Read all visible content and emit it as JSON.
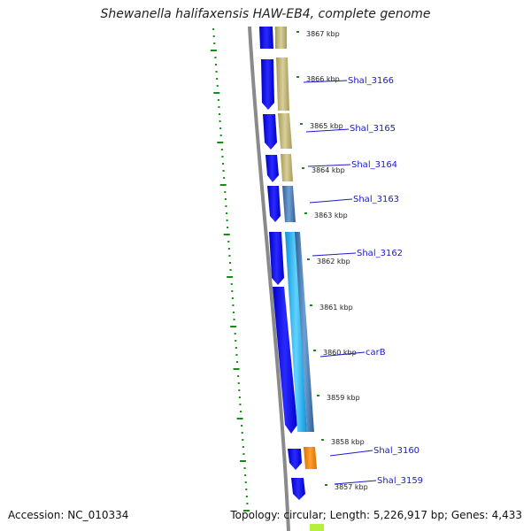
{
  "title": "Shewanella halifaxensis HAW-EB4, complete genome",
  "footer": {
    "accession": "Accession: NC_010334",
    "summary": "Topology: circular; Length: 5,226,917 bp; Genes: 4,433"
  },
  "ticks": [
    {
      "label": "3867 kbp",
      "kbp": 3867
    },
    {
      "label": "3866 kbp",
      "kbp": 3866
    },
    {
      "label": "3865 kbp",
      "kbp": 3865
    },
    {
      "label": "3864 kbp",
      "kbp": 3864
    },
    {
      "label": "3863 kbp",
      "kbp": 3863
    },
    {
      "label": "3862 kbp",
      "kbp": 3862
    },
    {
      "label": "3861 kbp",
      "kbp": 3861
    },
    {
      "label": "3860 kbp",
      "kbp": 3860
    },
    {
      "label": "3859 kbp",
      "kbp": 3859
    },
    {
      "label": "3858 kbp",
      "kbp": 3858
    },
    {
      "label": "3857 kbp",
      "kbp": 3857
    }
  ],
  "genes": [
    {
      "label": "Shal_3166"
    },
    {
      "label": "Shal_3165"
    },
    {
      "label": "Shal_3164"
    },
    {
      "label": "Shal_3163"
    },
    {
      "label": "Shal_3162"
    },
    {
      "label": "carB"
    },
    {
      "label": "Shal_3160"
    },
    {
      "label": "Shal_3159"
    }
  ],
  "colors": {
    "cds": "#1010e6",
    "backbone": "#8a8a8a",
    "gc_skew": "#1a8a1a",
    "label": "#1a1acc",
    "tan": "#c8bd7e",
    "steelblue": "#4a86c0",
    "cyan": "#29b6f0",
    "orange": "#f08c00",
    "lime": "#b4f03c"
  }
}
